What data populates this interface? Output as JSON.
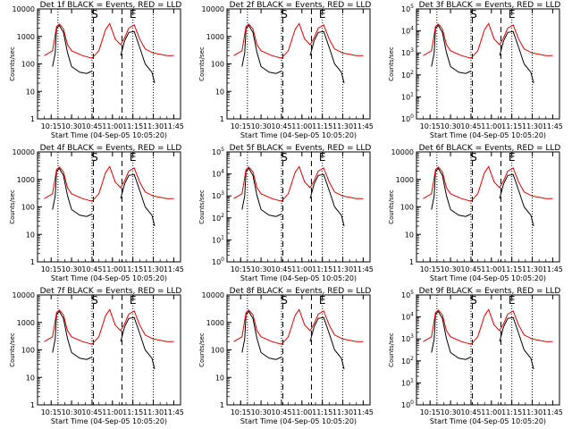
{
  "panels": [
    {
      "title": "Det 1f BLACK = Events, RED = LLD",
      "yscale": "linear-decades",
      "ymax_label": "10000"
    },
    {
      "title": "Det 2f BLACK = Events, RED = LLD",
      "yscale": "linear-decades",
      "ymax_label": "10000"
    },
    {
      "title": "Det 3f BLACK = Events, RED = LLD",
      "yscale": "exp",
      "ymax_label": "10^5"
    },
    {
      "title": "Det 4f BLACK = Events, RED = LLD",
      "yscale": "linear-decades",
      "ymax_label": "10000"
    },
    {
      "title": "Det 5f BLACK = Events, RED = LLD",
      "yscale": "exp",
      "ymax_label": "10^5"
    },
    {
      "title": "Det 6f BLACK = Events, RED = LLD",
      "yscale": "linear-decades",
      "ymax_label": "10000"
    },
    {
      "title": "Det 7f BLACK = Events, RED = LLD",
      "yscale": "linear-decades",
      "ymax_label": "10000"
    },
    {
      "title": "Det 8f BLACK = Events, RED = LLD",
      "yscale": "linear-decades",
      "ymax_label": "10000"
    },
    {
      "title": "Det 9f BLACK = Events, RED = LLD",
      "yscale": "exp",
      "ymax_label": "10^5"
    }
  ],
  "xlabel": "Start Time (04-Sep-05 10:05:20)",
  "ylabel": "Counts/sec",
  "xticks": [
    "10:15",
    "10:30",
    "10:45",
    "11:00",
    "11:15",
    "11:30",
    "11:45"
  ],
  "ytick_linear": [
    "1",
    "10",
    "100",
    "1000",
    "10000"
  ],
  "ytick_exp_exponents": [
    "0",
    "1",
    "2",
    "3",
    "4",
    "5"
  ],
  "markers": {
    "S": "S",
    "E": "E"
  },
  "colors": {
    "events": "#000000",
    "lld": "#dd0000"
  },
  "chart_data": {
    "type": "line",
    "xlabel": "Start Time (04-Sep-05 10:05:20)",
    "ylabel": "Counts/sec",
    "xrange_minutes_after_start": [
      5,
      100
    ],
    "yscale": "log",
    "ylim": [
      1,
      10000
    ],
    "dotted_vertical_lines": [
      "10:20",
      "10:45",
      "11:15",
      "11:30"
    ],
    "dashed_vertical_lines": [
      "10:46",
      "11:07"
    ],
    "series": [
      {
        "name": "BLACK = Events",
        "color": "#000000",
        "x": [
          "10:16",
          "10:18",
          "10:19",
          "10:21",
          "10:24",
          "10:27",
          "10:30",
          "10:36",
          "10:41",
          "10:45",
          "10:46",
          "10:58",
          "11:06",
          "11:09",
          "11:12",
          "11:16",
          "11:20",
          "11:24",
          "11:29",
          "11:31"
        ],
        "y": [
          80,
          250,
          2000,
          2500,
          1400,
          260,
          80,
          50,
          45,
          55,
          null,
          null,
          200,
          700,
          1400,
          1500,
          400,
          100,
          50,
          20
        ]
      },
      {
        "name": "RED = LLD",
        "color": "#dd0000",
        "x": [
          "10:10",
          "10:16",
          "10:19",
          "10:21",
          "10:24",
          "10:27",
          "10:30",
          "10:38",
          "10:45",
          "10:50",
          "10:55",
          "10:58",
          "11:02",
          "11:06",
          "11:09",
          "11:12",
          "11:16",
          "11:20",
          "11:24",
          "11:30",
          "11:40",
          "11:45"
        ],
        "y": [
          200,
          300,
          2300,
          2800,
          1900,
          500,
          300,
          200,
          160,
          300,
          1800,
          2900,
          800,
          500,
          900,
          2000,
          2600,
          800,
          350,
          250,
          200,
          200
        ]
      }
    ]
  }
}
